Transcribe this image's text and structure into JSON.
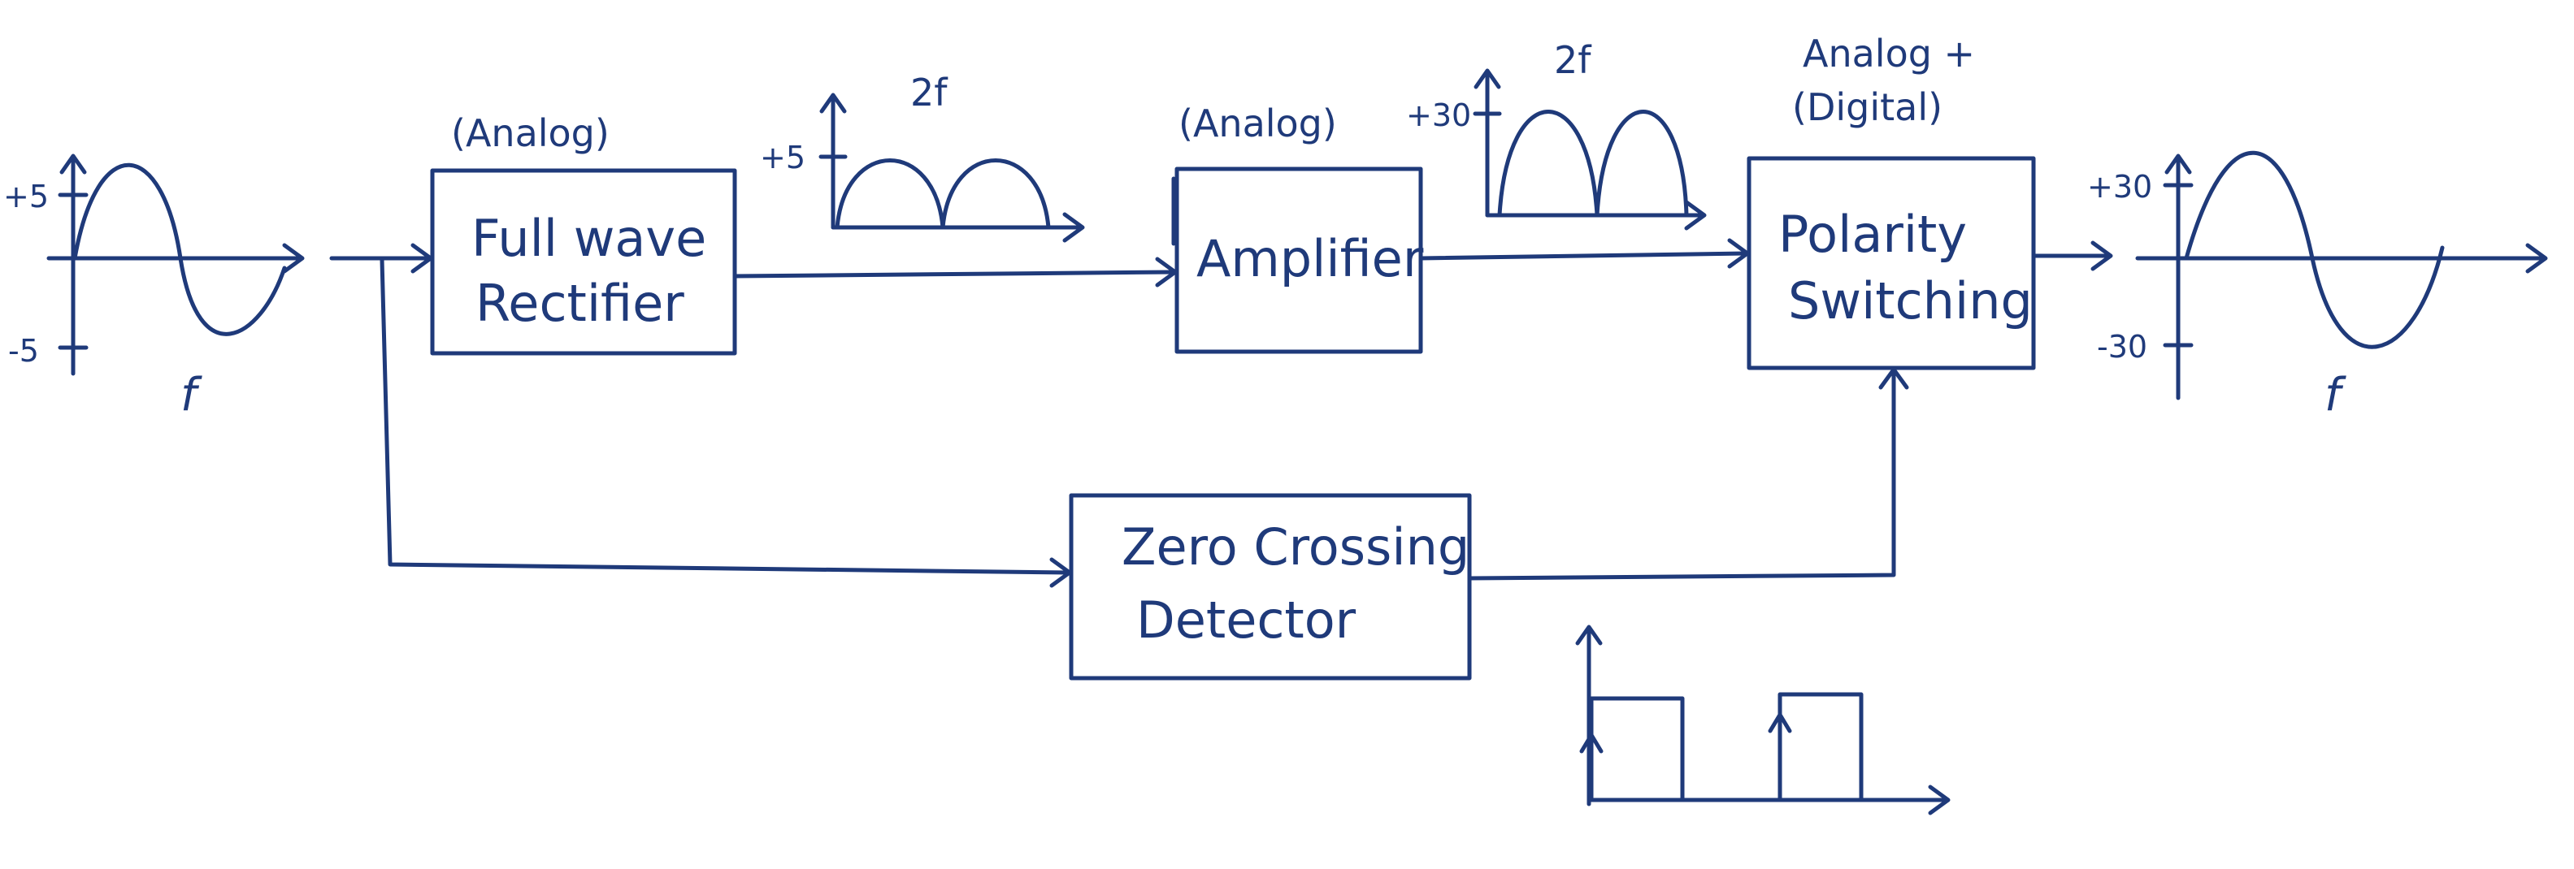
{
  "blocks": {
    "rectifier": {
      "line1": "Full wave",
      "line2": "Rectifier",
      "tag": "(Analog)"
    },
    "amplifier": {
      "line1": "Amplifier",
      "tag": "(Analog)"
    },
    "polarity": {
      "line1": "Polarity",
      "line2": "Switching",
      "tag_line1": "Analog +",
      "tag_line2": "(Digital)"
    },
    "zcd": {
      "line1": "Zero Crossing",
      "line2": "Detector"
    }
  },
  "input_wave": {
    "shape": "sine",
    "pos_label": "+5",
    "neg_label": "-5",
    "freq_label": "f",
    "amplitude": 5
  },
  "rectified_wave": {
    "shape": "full-wave rectified",
    "pos_label": "+5",
    "freq_label": "2f",
    "amplitude": 5
  },
  "amplified_wave": {
    "shape": "full-wave rectified",
    "pos_label": "+30",
    "freq_label": "2f",
    "amplitude": 30
  },
  "output_wave": {
    "shape": "sine",
    "pos_label": "+30",
    "neg_label": "-30",
    "freq_label": "f",
    "amplitude": 30
  },
  "switch_signal": {
    "shape": "square pulses"
  },
  "colors": {
    "ink": "#1f3a7a",
    "background": "#ffffff"
  }
}
